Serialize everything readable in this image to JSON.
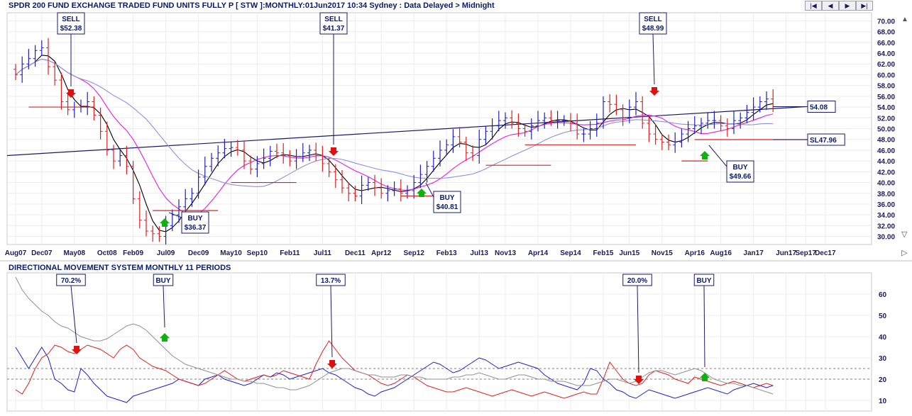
{
  "header": {
    "title": "SPDR 200 FUND EXCHANGE TRADED FUND UNITS FULLY P [ STW ]:MONTHLY:01Jun2017 10:34 Sydney : Data Delayed > Midnight",
    "nav": [
      "|◀",
      "◀",
      "▶",
      "▶|"
    ],
    "scroll_up": "▲",
    "colors": {
      "text": "#0a1a6a",
      "up_bar": "#2020c0",
      "down_bar": "#e02020",
      "ma_short": "#000000",
      "ma_mid": "#e020e0",
      "ma_long": "#9090e0",
      "trend": "#1a1a6a",
      "buy_arrow": "#10b010",
      "sell_arrow": "#e01010"
    }
  },
  "lower_header": {
    "title": "DIRECTIONAL MOVEMENT SYSTEM MONTHLY 11 PERIODS"
  },
  "chart_data": [
    {
      "type": "ohlc",
      "ylim": [
        28.5,
        71.5
      ],
      "yticks": [
        "70.00",
        "68.00",
        "66.00",
        "64.00",
        "62.00",
        "60.00",
        "58.00",
        "56.00",
        "54.00",
        "52.00",
        "50.00",
        "48.00",
        "46.00",
        "44.00",
        "42.00",
        "40.00",
        "38.00",
        "36.00",
        "34.00",
        "32.00",
        "30.00"
      ],
      "x_labels": [
        "Aug07",
        "Dec07",
        "May08",
        "Oct08",
        "Feb09",
        "Jul09",
        "Dec09",
        "May10",
        "Sep10",
        "Feb11",
        "Jul11",
        "Dec11",
        "Apr12",
        "Sep12",
        "Feb13",
        "Jul13",
        "Nov13",
        "Apr14",
        "Sep14",
        "Feb15",
        "Jun15",
        "Nov15",
        "Apr16",
        "Aug16",
        "Jan17",
        "Jun17",
        "Sep17",
        "Dec17"
      ],
      "x_label_index": [
        0,
        4,
        9,
        14,
        18,
        23,
        28,
        33,
        37,
        42,
        47,
        52,
        56,
        61,
        66,
        71,
        75,
        80,
        85,
        90,
        94,
        99,
        104,
        108,
        113,
        118,
        121,
        124
      ],
      "closes": [
        60,
        62,
        63,
        64.5,
        65,
        61.5,
        59,
        55,
        53.5,
        54,
        54,
        55,
        52.5,
        49.5,
        46,
        44,
        45,
        43,
        37,
        33,
        31,
        30.5,
        30,
        32,
        34,
        35.5,
        37,
        38,
        41,
        43,
        44.5,
        45.5,
        46.3,
        46.5,
        46,
        44,
        42.5,
        43.5,
        44.5,
        45.8,
        45.5,
        45,
        44,
        44.8,
        45.5,
        46,
        45,
        43.5,
        42,
        40.5,
        39,
        38,
        37.5,
        39.5,
        40,
        39,
        38,
        38.5,
        38.8,
        38,
        38.5,
        40,
        41.5,
        43,
        44.5,
        46,
        47,
        48.5,
        47.5,
        45.5,
        45,
        48,
        49.5,
        50.5,
        51.5,
        52,
        51,
        50,
        49.5,
        50.5,
        51.5,
        52,
        51.5,
        51.5,
        51.5,
        51,
        49,
        49,
        50,
        51,
        55,
        54.5,
        53.5,
        52,
        54,
        55,
        51,
        49,
        48,
        47.5,
        47,
        47.5,
        49,
        50,
        50.5,
        51,
        51.5,
        51.5,
        50.5,
        50,
        51.5,
        52,
        53,
        54,
        55,
        55.5,
        54.08
      ],
      "bars": "monthly OHLC bars, blue = up month, red = down month",
      "moving_averages": [
        "black",
        "magenta",
        "light blue"
      ],
      "price_labels": [
        "54.08",
        "SL47.96"
      ],
      "signals": [
        {
          "type": "SELL",
          "price": "$52.38",
          "index": 7
        },
        {
          "type": "BUY",
          "price": "$36.37",
          "index": 22
        },
        {
          "type": "SELL",
          "price": "$41.37",
          "index": 48
        },
        {
          "type": "BUY",
          "price": "$40.81",
          "index": 61
        },
        {
          "type": "SELL",
          "price": "$48.99",
          "index": 95
        },
        {
          "type": "BUY",
          "price": "$49.66",
          "index": 103
        }
      ]
    },
    {
      "type": "line",
      "title": "DIRECTIONAL MOVEMENT SYSTEM MONTHLY 11 PERIODS",
      "ylim": [
        5,
        70
      ],
      "yticks": [
        "60",
        "50",
        "40",
        "30",
        "20",
        "10"
      ],
      "reference_lines": [
        25,
        20
      ],
      "series": [
        {
          "color": "#2020d0",
          "values": [
            35,
            30,
            25,
            30,
            35,
            30,
            20,
            18,
            15,
            14,
            25,
            22,
            18,
            15,
            12,
            11,
            10,
            9,
            12,
            13,
            14,
            15,
            16,
            17,
            18,
            20,
            19,
            18,
            17,
            20,
            21,
            22,
            20,
            19,
            18,
            17,
            18,
            20,
            22,
            21,
            23,
            22,
            20,
            21,
            22,
            23,
            24,
            25,
            23,
            22,
            20,
            18,
            16,
            15,
            13,
            12,
            14,
            15,
            16,
            18,
            20,
            22,
            24,
            26,
            28,
            27,
            25,
            23,
            24,
            26,
            28,
            30,
            29,
            27,
            25,
            26,
            27,
            28,
            27,
            26,
            25,
            22,
            20,
            18,
            17,
            16,
            15,
            18,
            25,
            24,
            20,
            18,
            15,
            14,
            12,
            11,
            13,
            15,
            14,
            13,
            12,
            11,
            12,
            13,
            14,
            15,
            16,
            15,
            14,
            13,
            15,
            16,
            17,
            18,
            17,
            16,
            17
          ]
        },
        {
          "color": "#e02020",
          "values": [
            15,
            13,
            18,
            25,
            30,
            32,
            36,
            35,
            33,
            32,
            34,
            36,
            35,
            34,
            32,
            30,
            34,
            36,
            34,
            30,
            28,
            26,
            25,
            24,
            22,
            20,
            19,
            18,
            17,
            18,
            20,
            22,
            24,
            22,
            20,
            19,
            20,
            21,
            22,
            21,
            22,
            24,
            23,
            22,
            21,
            20,
            27,
            33,
            38,
            34,
            30,
            27,
            24,
            23,
            22,
            20,
            18,
            17,
            18,
            20,
            22,
            21,
            19,
            17,
            16,
            15,
            14,
            14,
            15,
            16,
            15,
            14,
            13,
            12,
            13,
            14,
            15,
            14,
            13,
            12,
            13,
            14,
            13,
            12,
            11,
            12,
            13,
            14,
            13,
            13,
            20,
            28,
            24,
            20,
            18,
            17,
            18,
            22,
            24,
            23,
            22,
            20,
            19,
            18,
            21,
            20,
            19,
            18,
            17,
            18,
            19,
            18,
            17,
            16,
            17,
            18,
            17
          ]
        },
        {
          "color": "#909090",
          "values": [
            68,
            62,
            58,
            55,
            52,
            50,
            47,
            45,
            44,
            42,
            40,
            39,
            38,
            38,
            39,
            41,
            43,
            45,
            46,
            45,
            43,
            40,
            37,
            34,
            31,
            29,
            27,
            26,
            25,
            24,
            23,
            22,
            21,
            20,
            20,
            19,
            19,
            18,
            18,
            17,
            16,
            16,
            15,
            15,
            16,
            17,
            19,
            21,
            23,
            24,
            25,
            25,
            24,
            23,
            22,
            22,
            21,
            21,
            21,
            22,
            22,
            21,
            21,
            20,
            20,
            20,
            20,
            21,
            21,
            22,
            22,
            23,
            22,
            21,
            20,
            20,
            21,
            22,
            22,
            21,
            20,
            20,
            19,
            19,
            19,
            18,
            17,
            17,
            17,
            18,
            19,
            20,
            20,
            19,
            18,
            19,
            21,
            23,
            24,
            24,
            23,
            22,
            23,
            24,
            25,
            24,
            22,
            20,
            19,
            18,
            18,
            17,
            17,
            16,
            15,
            14,
            13
          ]
        }
      ],
      "annotations": [
        {
          "text": "70.2%",
          "index": 7
        },
        {
          "text": "BUY",
          "index": 18
        },
        {
          "text": "13.7%",
          "index": 46
        },
        {
          "text": "20.0%",
          "index": 93
        },
        {
          "text": "BUY",
          "index": 103
        }
      ]
    }
  ]
}
